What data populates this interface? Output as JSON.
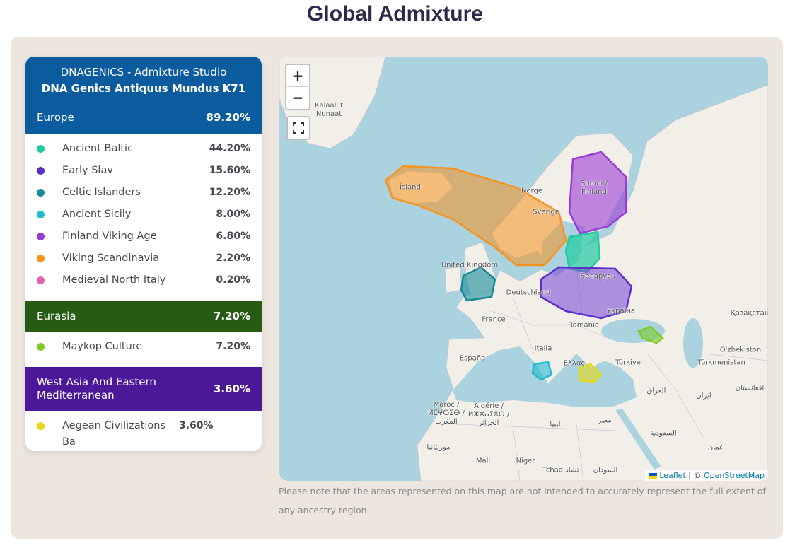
{
  "title": "Global Admixture",
  "panel": {
    "header": {
      "line1": "DNAGENICS - Admixture Studio",
      "line2": "DNA Genics Antiquus Mundus K71"
    },
    "groups": [
      {
        "name": "Europe",
        "percent": "89.20%",
        "color": "#0b5c9e",
        "items": [
          {
            "name": "Ancient Baltic",
            "percent": "44.20%",
            "color": "#1fcaa0"
          },
          {
            "name": "Early Slav",
            "percent": "15.60%",
            "color": "#5a2fc8"
          },
          {
            "name": "Celtic Islanders",
            "percent": "12.20%",
            "color": "#168a98"
          },
          {
            "name": "Ancient Sicily",
            "percent": "8.00%",
            "color": "#23b9d0"
          },
          {
            "name": "Finland Viking Age",
            "percent": "6.80%",
            "color": "#9b3bd6"
          },
          {
            "name": "Viking Scandinavia",
            "percent": "2.20%",
            "color": "#f6921e"
          },
          {
            "name": "Medieval North Italy",
            "percent": "0.20%",
            "color": "#e061b2"
          }
        ]
      },
      {
        "name": "Eurasia",
        "percent": "7.20%",
        "color": "#255b13",
        "items": [
          {
            "name": "Maykop Culture",
            "percent": "7.20%",
            "color": "#7ccb2a"
          }
        ]
      },
      {
        "name": "West Asia And Eastern Mediterranean",
        "percent": "3.60%",
        "color": "#4b189a",
        "items": [
          {
            "name": "Aegean Civilizations Ba",
            "percent": "3.60%",
            "color": "#e6d817"
          }
        ]
      }
    ]
  },
  "map": {
    "zoom_in": "+",
    "zoom_out": "−",
    "labels": [
      "Kalaallit Nunaat",
      "Ísland",
      "Norge",
      "Sverige",
      "Suomi / Finland",
      "United Kingdom",
      "Deutschland",
      "Беларусь",
      "Україна",
      "France",
      "România",
      "Italia",
      "España",
      "Ελλάς",
      "Türkiye",
      "Қазақстан",
      "O'zbekiston",
      "Türkmenistan",
      "العراق",
      "ایران",
      "افغانستان",
      "Maroc / ⵍⵎⵖⵔⵉⴱ / المغرب",
      "Algérie / ⵍⵣⵣⴰⵢⴻⵔ / الجزائر",
      "ليبيا",
      "مصر",
      "السعودية",
      "عمان",
      "موريتانيا",
      "Mali",
      "Niger",
      "Tchad تشاد",
      "السودان"
    ],
    "attribution": {
      "leaflet": "Leaflet",
      "separator": "| ©",
      "osm": "OpenStreetMap"
    }
  },
  "note": "Please note that the areas represented on this map are not intended to accurately represent the full extent of any ancestry region."
}
